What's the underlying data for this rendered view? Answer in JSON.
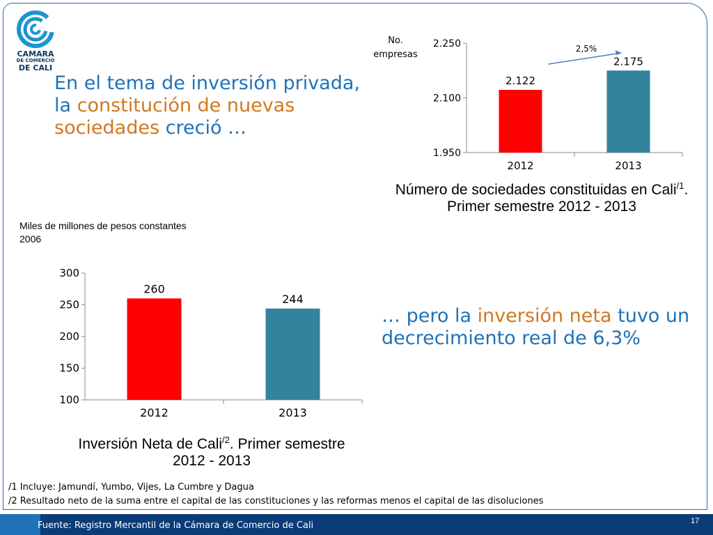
{
  "logo": {
    "line1": "CAMARA",
    "line2": "DE COMERCIO",
    "line3": "DE CALI"
  },
  "headline": {
    "part1": "En el tema de inversión privada, la ",
    "highlight": "constitución de nuevas sociedades",
    "part2": " creció …"
  },
  "headline2": {
    "part1": "… pero la ",
    "highlight": "inversión neta",
    "part2": " tuvo un decrecimiento real de 6,3%"
  },
  "chart1": {
    "caption_a": "Número de sociedades constituidas en Cali",
    "caption_sup": "/1",
    "caption_b": ". Primer semestre 2012 - 2013"
  },
  "chart2": {
    "units": "Miles de millones de pesos constantes 2006",
    "caption_a": "Inversión Neta de Cali",
    "caption_sup": "/2",
    "caption_b": ". Primer semestre 2012 - 2013"
  },
  "notes": {
    "n1": "/1 Incluye: Jamundí, Yumbo, Vijes, La Cumbre y Dagua",
    "n2": "/2 Resultado neto de la suma entre el capital de las constituciones y las reformas menos el capital de las disoluciones"
  },
  "footer": {
    "source": "Fuente: Registro Mercantil de la Cámara de Comercio de Cali",
    "page": "17"
  },
  "colors": {
    "red": "#ff0000",
    "teal": "#31849b",
    "blue": "#1f72b8",
    "orange": "#d0791e",
    "navy": "#0b3c78"
  },
  "chart_data": [
    {
      "type": "bar",
      "ylabel": "No. empresas",
      "categories": [
        "2012",
        "2013"
      ],
      "values": [
        2122,
        2175
      ],
      "value_labels": [
        "2.122",
        "2.175"
      ],
      "ylim": [
        1950,
        2250
      ],
      "yticks": [
        1950,
        2100,
        2250
      ],
      "ytick_labels": [
        "1.950",
        "2.100",
        "2.250"
      ],
      "bar_colors": [
        "#ff0000",
        "#31849b"
      ],
      "annotation": "2,5%",
      "grid": false
    },
    {
      "type": "bar",
      "categories": [
        "2012",
        "2013"
      ],
      "values": [
        260,
        244
      ],
      "value_labels": [
        "260",
        "244"
      ],
      "ylim": [
        100,
        300
      ],
      "yticks": [
        100,
        150,
        200,
        250,
        300
      ],
      "ytick_labels": [
        "100",
        "150",
        "200",
        "250",
        "300"
      ],
      "bar_colors": [
        "#ff0000",
        "#31849b"
      ],
      "grid": false
    }
  ]
}
